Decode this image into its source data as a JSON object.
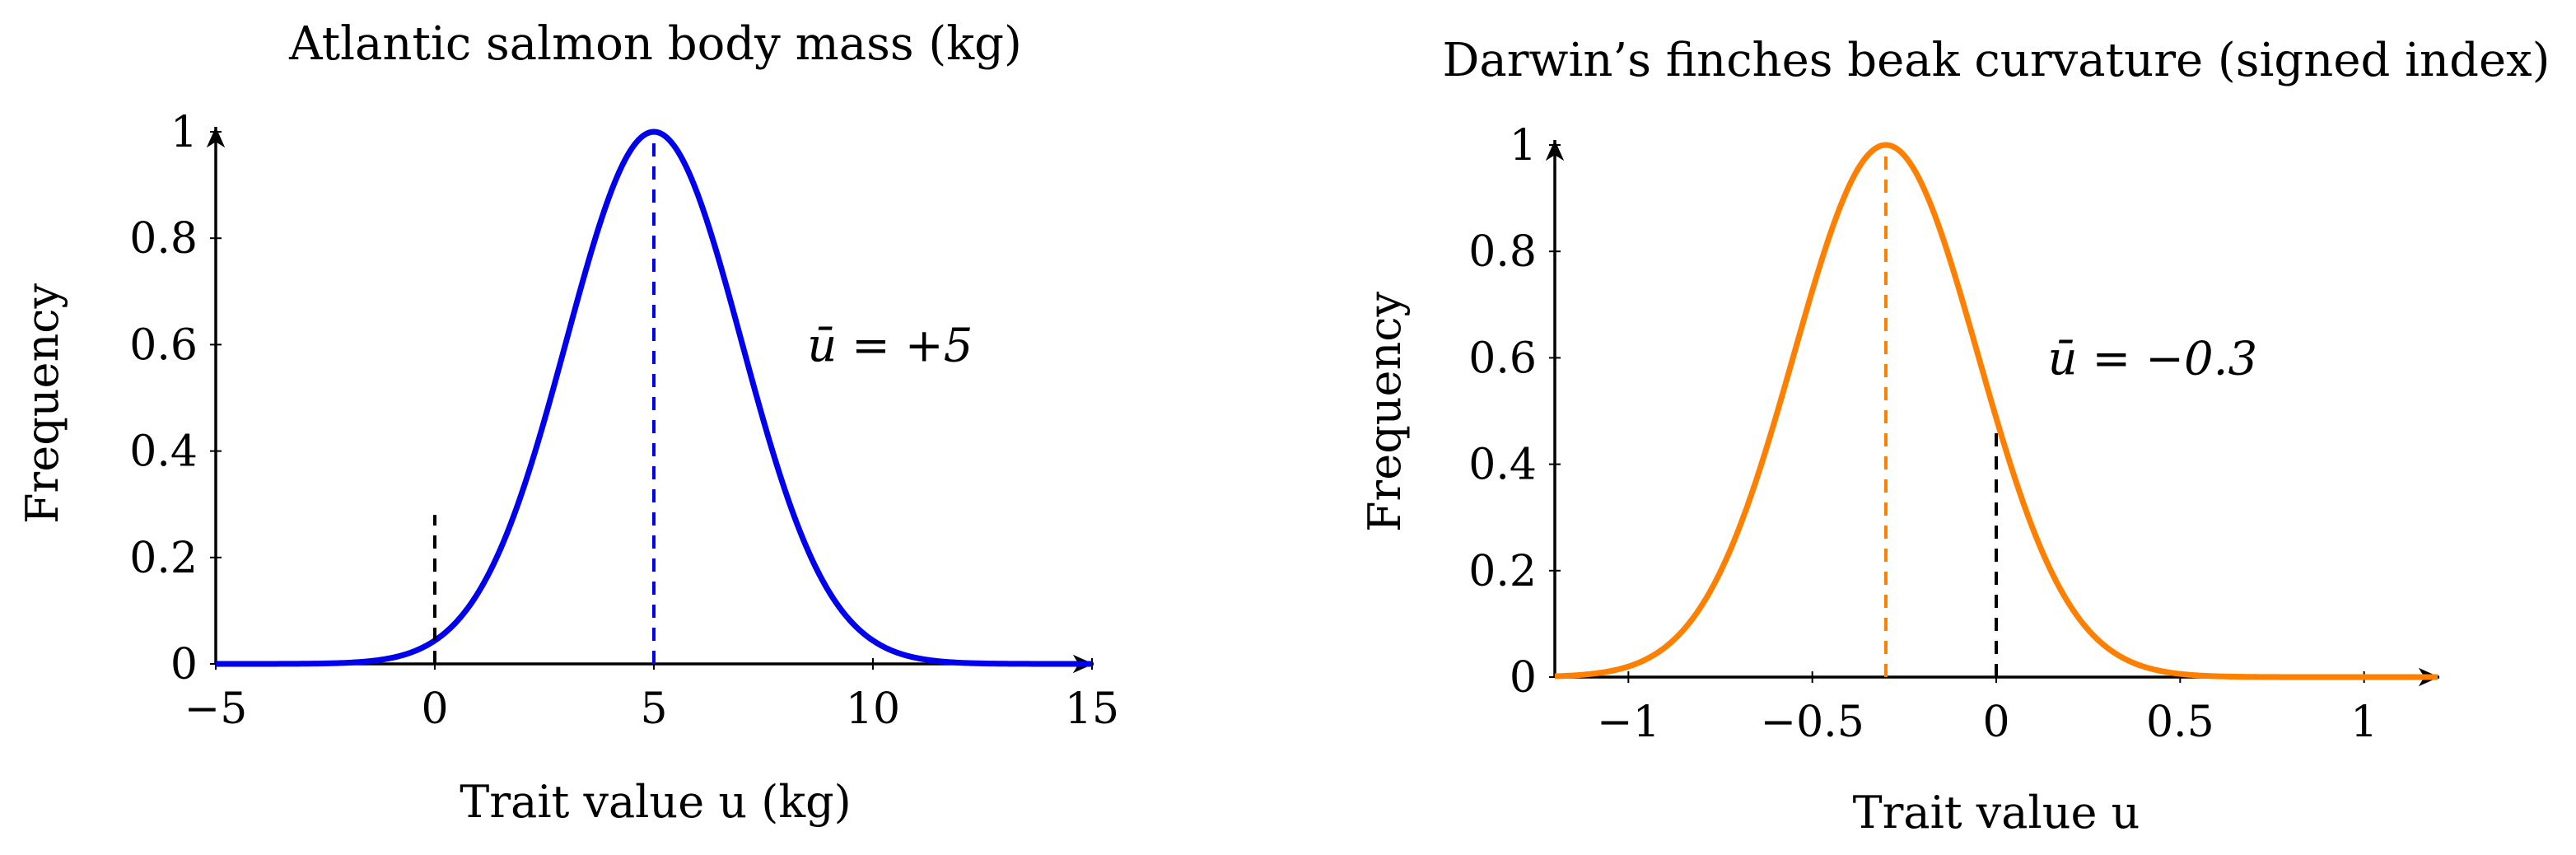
{
  "chart_data": [
    {
      "type": "line",
      "title": "Atlantic salmon body mass (kg)",
      "xlabel": "Trait value u (kg)",
      "ylabel": "Frequency",
      "xlim": [
        -5,
        15
      ],
      "ylim": [
        0,
        1
      ],
      "x_ticks": [
        -5,
        0,
        5,
        10,
        15
      ],
      "x_tick_labels": [
        "−5",
        "0",
        "5",
        "10",
        "15"
      ],
      "y_ticks": [
        0,
        0.2,
        0.4,
        0.6,
        0.8,
        1
      ],
      "y_tick_labels": [
        "0",
        "0.2",
        "0.4",
        "0.6",
        "0.8",
        "1"
      ],
      "series": [
        {
          "mean": 5,
          "sd": 2,
          "peak": 1,
          "color": "#0000ee"
        }
      ],
      "mean_line": {
        "x": 5,
        "color": "#0000ee"
      },
      "reference_line": {
        "x": 0,
        "ymax": 0.28,
        "color": "#000000"
      },
      "annotation": {
        "text": "ū = +5",
        "color": "#0000ee",
        "x": 8.5,
        "y": 0.6
      },
      "grid": false
    },
    {
      "type": "line",
      "title": "Darwin’s finches beak curvature (signed index)",
      "xlabel": "Trait value u",
      "ylabel": "Frequency",
      "xlim": [
        -1.2,
        1.2
      ],
      "ylim": [
        0,
        1
      ],
      "x_ticks": [
        -1,
        -0.5,
        0,
        0.5,
        1
      ],
      "x_tick_labels": [
        "−1",
        "−0.5",
        "0",
        "0.5",
        "1"
      ],
      "y_ticks": [
        0,
        0.2,
        0.4,
        0.6,
        0.8,
        1
      ],
      "y_tick_labels": [
        "0",
        "0.2",
        "0.4",
        "0.6",
        "0.8",
        "1"
      ],
      "series": [
        {
          "mean": -0.3,
          "sd": 0.25,
          "peak": 1,
          "color": "#ff8000"
        }
      ],
      "mean_line": {
        "x": -0.3,
        "color": "#ff8000"
      },
      "reference_line": {
        "x": 0,
        "ymax": 0.47,
        "color": "#000000"
      },
      "annotation": {
        "text": "ū = −0.3",
        "color": "#ff8000",
        "x": 0.14,
        "y": 0.6
      },
      "grid": false
    }
  ]
}
